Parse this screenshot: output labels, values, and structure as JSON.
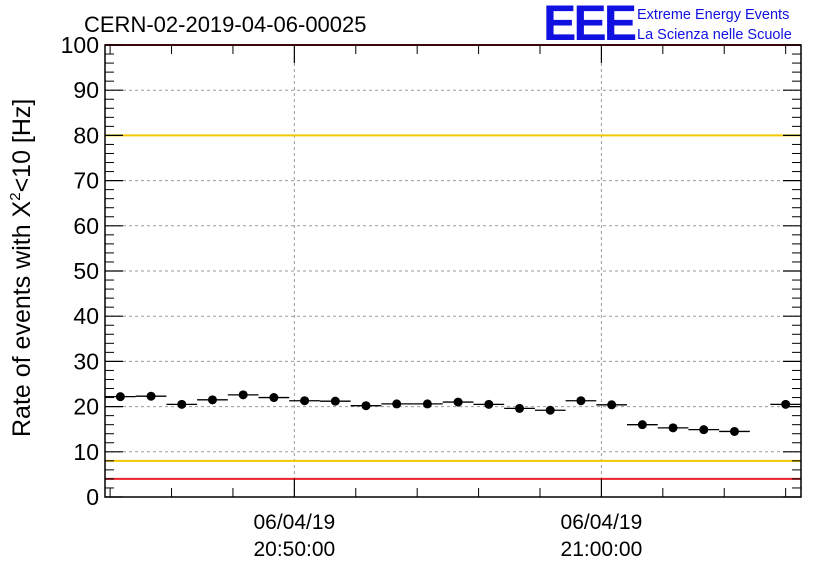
{
  "title": "CERN-02-2019-04-06-00025",
  "logo": {
    "mark": "EEE",
    "line1": "Extreme Energy Events",
    "line2": "La Scienza nelle Scuole"
  },
  "chart_data": {
    "type": "scatter",
    "ylabel_main": "Rate of events with X",
    "ylabel_sup": "2",
    "ylabel_tail": "<10 [Hz]",
    "ylim": [
      0,
      100
    ],
    "yticks": [
      0,
      10,
      20,
      30,
      40,
      50,
      60,
      70,
      80,
      90,
      100
    ],
    "xlim": [
      "2019-04-06 20:43:50",
      "2019-04-06 21:06:30"
    ],
    "xticks": [
      {
        "time": "2019-04-06 20:50:00",
        "date_label": "06/04/19",
        "time_label": "20:50:00"
      },
      {
        "time": "2019-04-06 21:00:00",
        "date_label": "06/04/19",
        "time_label": "21:00:00"
      }
    ],
    "grid": true,
    "bin_width_seconds": 60,
    "points": [
      {
        "time": "2019-04-06 20:44:20",
        "value": 22.2
      },
      {
        "time": "2019-04-06 20:45:20",
        "value": 22.3
      },
      {
        "time": "2019-04-06 20:46:20",
        "value": 20.5
      },
      {
        "time": "2019-04-06 20:47:20",
        "value": 21.5
      },
      {
        "time": "2019-04-06 20:48:20",
        "value": 22.6
      },
      {
        "time": "2019-04-06 20:49:20",
        "value": 22.0
      },
      {
        "time": "2019-04-06 20:50:20",
        "value": 21.3
      },
      {
        "time": "2019-04-06 20:51:20",
        "value": 21.2
      },
      {
        "time": "2019-04-06 20:52:20",
        "value": 20.2
      },
      {
        "time": "2019-04-06 20:53:20",
        "value": 20.6
      },
      {
        "time": "2019-04-06 20:54:20",
        "value": 20.6
      },
      {
        "time": "2019-04-06 20:55:20",
        "value": 21.0
      },
      {
        "time": "2019-04-06 20:56:20",
        "value": 20.5
      },
      {
        "time": "2019-04-06 20:57:20",
        "value": 19.6
      },
      {
        "time": "2019-04-06 20:58:20",
        "value": 19.2
      },
      {
        "time": "2019-04-06 20:59:20",
        "value": 21.3
      },
      {
        "time": "2019-04-06 21:00:20",
        "value": 20.4
      },
      {
        "time": "2019-04-06 21:01:20",
        "value": 16.0
      },
      {
        "time": "2019-04-06 21:02:20",
        "value": 15.3
      },
      {
        "time": "2019-04-06 21:03:20",
        "value": 14.9
      },
      {
        "time": "2019-04-06 21:04:20",
        "value": 14.5
      },
      {
        "time": "2019-04-06 21:06:00",
        "value": 20.5
      }
    ],
    "reference_lines": [
      {
        "value": 100,
        "color": "#e8202a"
      },
      {
        "value": 80,
        "color": "#f0c800"
      },
      {
        "value": 8,
        "color": "#f0c800"
      },
      {
        "value": 4,
        "color": "#e8202a"
      }
    ]
  }
}
